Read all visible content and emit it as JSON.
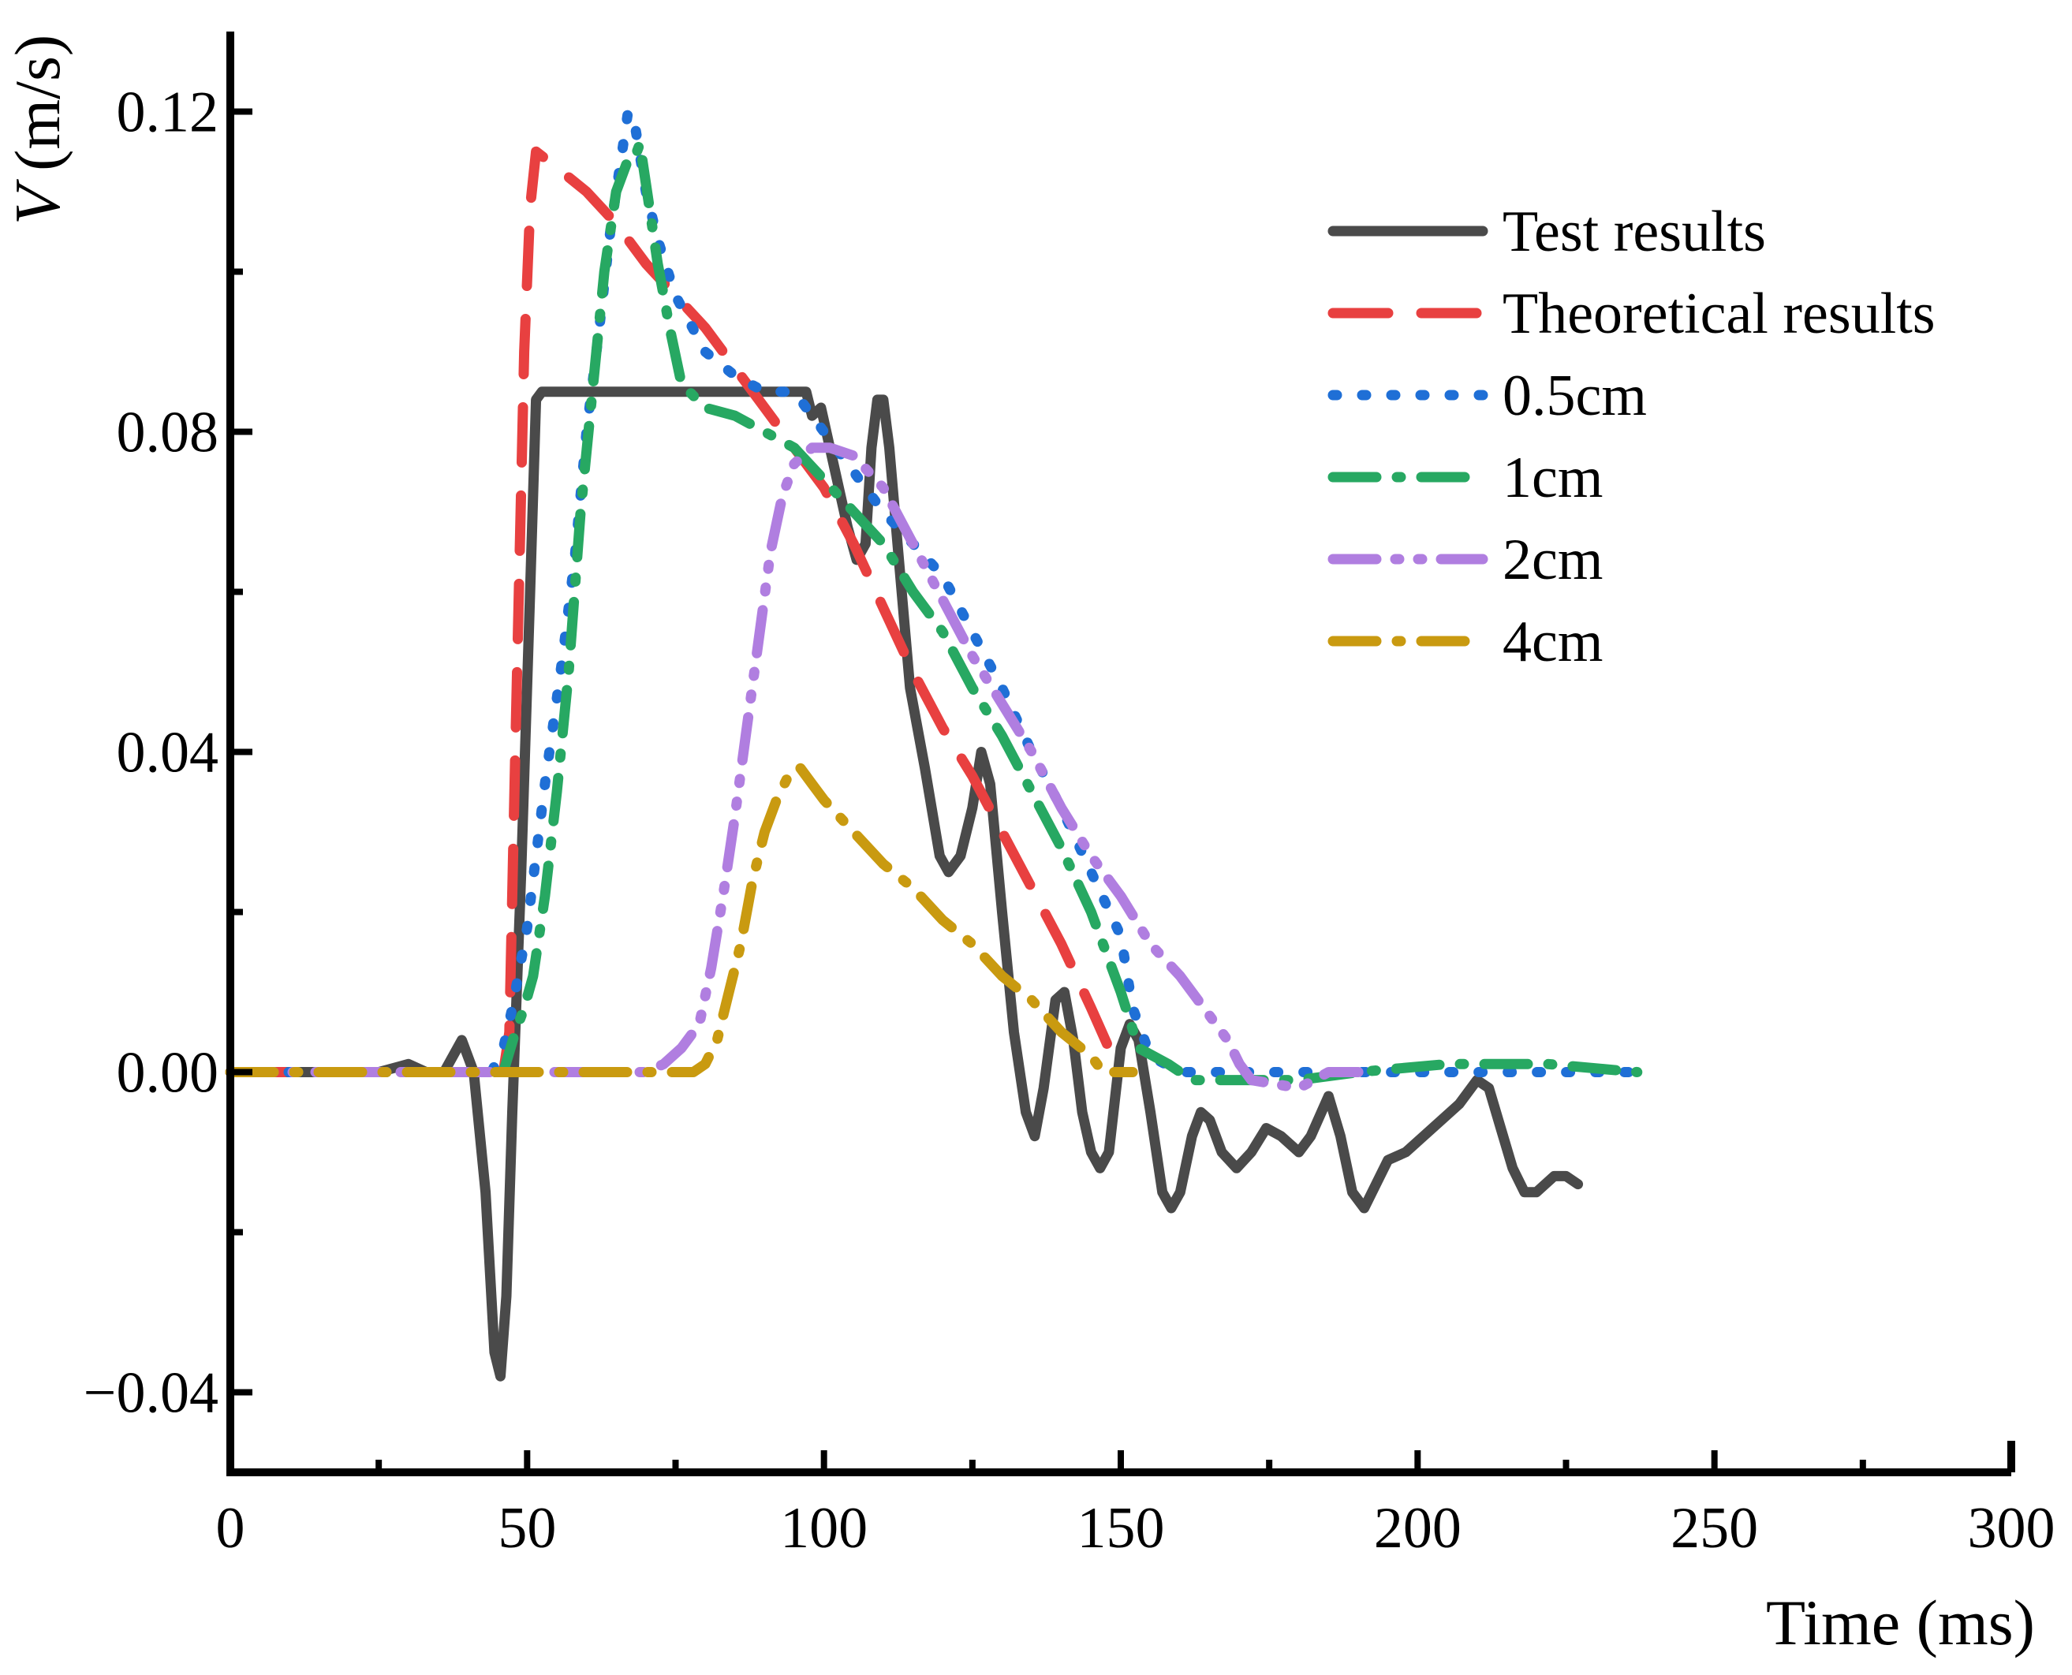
{
  "chart_data": {
    "type": "line",
    "xlabel": "Time (ms)",
    "ylabel_symbol": "V",
    "ylabel_unit": "(m/s)",
    "xlim": [
      0,
      300
    ],
    "ylim": [
      -0.05,
      0.13
    ],
    "x_ticks": [
      0,
      50,
      100,
      150,
      200,
      250,
      300
    ],
    "x_tick_labels": [
      "0",
      "50",
      "100",
      "150",
      "200",
      "250",
      "300"
    ],
    "y_ticks": [
      -0.04,
      0.0,
      0.04,
      0.08,
      0.12
    ],
    "y_tick_labels": [
      "−0.04",
      "0.00",
      "0.04",
      "0.08",
      "0.12"
    ],
    "grid": false,
    "legend_position": "top-right",
    "series": [
      {
        "name": "Test results",
        "color": "#4a4a4a",
        "style": "solid",
        "points": [
          [
            0,
            0
          ],
          [
            25,
            0
          ],
          [
            30,
            0.001
          ],
          [
            33,
            0
          ],
          [
            36,
            0
          ],
          [
            39,
            0.004
          ],
          [
            41,
            0
          ],
          [
            43,
            -0.015
          ],
          [
            44.5,
            -0.035
          ],
          [
            45.5,
            -0.038
          ],
          [
            46.5,
            -0.028
          ],
          [
            47.5,
            -0.005
          ],
          [
            49,
            0.025
          ],
          [
            50.5,
            0.06
          ],
          [
            51.5,
            0.084
          ],
          [
            52.5,
            0.085
          ],
          [
            70,
            0.085
          ],
          [
            80,
            0.085
          ],
          [
            95,
            0.085
          ],
          [
            97,
            0.085
          ],
          [
            98,
            0.082
          ],
          [
            99.5,
            0.083
          ],
          [
            101,
            0.078
          ],
          [
            104,
            0.068
          ],
          [
            105.5,
            0.064
          ],
          [
            107,
            0.066
          ],
          [
            108,
            0.078
          ],
          [
            109,
            0.084
          ],
          [
            110,
            0.084
          ],
          [
            111,
            0.078
          ],
          [
            112.5,
            0.065
          ],
          [
            114.5,
            0.048
          ],
          [
            117,
            0.038
          ],
          [
            119.5,
            0.027
          ],
          [
            121,
            0.025
          ],
          [
            123,
            0.027
          ],
          [
            125,
            0.033
          ],
          [
            126.5,
            0.04
          ],
          [
            128,
            0.036
          ],
          [
            130,
            0.02
          ],
          [
            132,
            0.005
          ],
          [
            134,
            -0.005
          ],
          [
            135.5,
            -0.008
          ],
          [
            137,
            -0.002
          ],
          [
            139,
            0.009
          ],
          [
            140.5,
            0.01
          ],
          [
            142,
            0.004
          ],
          [
            143.5,
            -0.005
          ],
          [
            145,
            -0.01
          ],
          [
            146.5,
            -0.012
          ],
          [
            148,
            -0.01
          ],
          [
            150,
            0.003
          ],
          [
            151.5,
            0.006
          ],
          [
            153,
            0.004
          ],
          [
            155,
            -0.005
          ],
          [
            157,
            -0.015
          ],
          [
            158.5,
            -0.017
          ],
          [
            160,
            -0.015
          ],
          [
            162,
            -0.008
          ],
          [
            163.5,
            -0.005
          ],
          [
            165,
            -0.006
          ],
          [
            167,
            -0.01
          ],
          [
            169.5,
            -0.012
          ],
          [
            172,
            -0.01
          ],
          [
            174.5,
            -0.007
          ],
          [
            177,
            -0.008
          ],
          [
            180,
            -0.01
          ],
          [
            182,
            -0.008
          ],
          [
            185,
            -0.003
          ],
          [
            187,
            -0.008
          ],
          [
            189,
            -0.015
          ],
          [
            191,
            -0.017
          ],
          [
            193,
            -0.014
          ],
          [
            195,
            -0.011
          ],
          [
            198,
            -0.01
          ],
          [
            201,
            -0.008
          ],
          [
            204,
            -0.006
          ],
          [
            207,
            -0.004
          ],
          [
            210,
            -0.001
          ],
          [
            212,
            -0.002
          ],
          [
            214,
            -0.007
          ],
          [
            216,
            -0.012
          ],
          [
            218,
            -0.015
          ],
          [
            220,
            -0.015
          ],
          [
            223,
            -0.013
          ],
          [
            225,
            -0.013
          ],
          [
            227,
            -0.014
          ]
        ]
      },
      {
        "name": "Theoretical results",
        "color": "#e84040",
        "style": "dashed",
        "points": [
          [
            0,
            0
          ],
          [
            46,
            0
          ],
          [
            47,
            0.005
          ],
          [
            48,
            0.04
          ],
          [
            49.5,
            0.09
          ],
          [
            50.5,
            0.108
          ],
          [
            51.5,
            0.115
          ],
          [
            55,
            0.113
          ],
          [
            60,
            0.11
          ],
          [
            65,
            0.106
          ],
          [
            70,
            0.101
          ],
          [
            75,
            0.097
          ],
          [
            80,
            0.093
          ],
          [
            85,
            0.088
          ],
          [
            90,
            0.083
          ],
          [
            95,
            0.078
          ],
          [
            100,
            0.073
          ],
          [
            105,
            0.066
          ],
          [
            110,
            0.058
          ],
          [
            115,
            0.05
          ],
          [
            120,
            0.043
          ],
          [
            125,
            0.037
          ],
          [
            130,
            0.03
          ],
          [
            135,
            0.023
          ],
          [
            140,
            0.016
          ],
          [
            145,
            0.008
          ],
          [
            148,
            0.003
          ],
          [
            149,
            0
          ]
        ]
      },
      {
        "name": "0.5cm",
        "color": "#1f6fd6",
        "style": "dotted",
        "points": [
          [
            0,
            0
          ],
          [
            44,
            0
          ],
          [
            46,
            0.003
          ],
          [
            47.5,
            0.008
          ],
          [
            50,
            0.018
          ],
          [
            53,
            0.036
          ],
          [
            56,
            0.052
          ],
          [
            58,
            0.064
          ],
          [
            60,
            0.08
          ],
          [
            62,
            0.092
          ],
          [
            64,
            0.105
          ],
          [
            66,
            0.115
          ],
          [
            67,
            0.12
          ],
          [
            68,
            0.119
          ],
          [
            70,
            0.11
          ],
          [
            72,
            0.104
          ],
          [
            75,
            0.097
          ],
          [
            80,
            0.09
          ],
          [
            85,
            0.087
          ],
          [
            90,
            0.085
          ],
          [
            95,
            0.085
          ],
          [
            100,
            0.08
          ],
          [
            105,
            0.075
          ],
          [
            110,
            0.07
          ],
          [
            115,
            0.066
          ],
          [
            120,
            0.062
          ],
          [
            125,
            0.055
          ],
          [
            130,
            0.048
          ],
          [
            135,
            0.04
          ],
          [
            140,
            0.033
          ],
          [
            145,
            0.025
          ],
          [
            150,
            0.017
          ],
          [
            152,
            0.008
          ],
          [
            155,
            0.002
          ],
          [
            160,
            0
          ],
          [
            237,
            0
          ]
        ]
      },
      {
        "name": "1cm",
        "color": "#27a862",
        "style": "dashdot",
        "points": [
          [
            0,
            0
          ],
          [
            45,
            0
          ],
          [
            46,
            0
          ],
          [
            48,
            0.005
          ],
          [
            49.5,
            0.008
          ],
          [
            51,
            0.012
          ],
          [
            53,
            0.022
          ],
          [
            55,
            0.035
          ],
          [
            57,
            0.05
          ],
          [
            59,
            0.07
          ],
          [
            61,
            0.085
          ],
          [
            63,
            0.1
          ],
          [
            65,
            0.11
          ],
          [
            67,
            0.114
          ],
          [
            68,
            0.114
          ],
          [
            69,
            0.116
          ],
          [
            70,
            0.111
          ],
          [
            72,
            0.101
          ],
          [
            74,
            0.093
          ],
          [
            76,
            0.086
          ],
          [
            80,
            0.083
          ],
          [
            85,
            0.082
          ],
          [
            90,
            0.08
          ],
          [
            95,
            0.078
          ],
          [
            100,
            0.074
          ],
          [
            105,
            0.07
          ],
          [
            110,
            0.066
          ],
          [
            115,
            0.06
          ],
          [
            120,
            0.055
          ],
          [
            125,
            0.048
          ],
          [
            130,
            0.042
          ],
          [
            135,
            0.035
          ],
          [
            140,
            0.028
          ],
          [
            145,
            0.02
          ],
          [
            150,
            0.01
          ],
          [
            153,
            0.003
          ],
          [
            158,
            0.001
          ],
          [
            162,
            -0.001
          ],
          [
            166,
            -0.001
          ],
          [
            172,
            -0.001
          ],
          [
            180,
            -0.001
          ],
          [
            190,
            0
          ],
          [
            205,
            0.001
          ],
          [
            213,
            0.001
          ],
          [
            222,
            0.001
          ],
          [
            237,
            0
          ]
        ]
      },
      {
        "name": "2cm",
        "color": "#b07ee0",
        "style": "dashdotdot",
        "points": [
          [
            0,
            0
          ],
          [
            70,
            0
          ],
          [
            73,
            0.001
          ],
          [
            76,
            0.003
          ],
          [
            79,
            0.006
          ],
          [
            81,
            0.013
          ],
          [
            83,
            0.022
          ],
          [
            85,
            0.032
          ],
          [
            87,
            0.043
          ],
          [
            89,
            0.054
          ],
          [
            91,
            0.065
          ],
          [
            93,
            0.072
          ],
          [
            95,
            0.076
          ],
          [
            98,
            0.078
          ],
          [
            101,
            0.078
          ],
          [
            105,
            0.077
          ],
          [
            110,
            0.073
          ],
          [
            115,
            0.066
          ],
          [
            120,
            0.059
          ],
          [
            125,
            0.052
          ],
          [
            130,
            0.046
          ],
          [
            135,
            0.04
          ],
          [
            140,
            0.033
          ],
          [
            145,
            0.027
          ],
          [
            150,
            0.022
          ],
          [
            155,
            0.016
          ],
          [
            160,
            0.012
          ],
          [
            165,
            0.007
          ],
          [
            168,
            0.004
          ],
          [
            170,
            0.001
          ],
          [
            172,
            -0.001
          ],
          [
            180,
            -0.002
          ],
          [
            185,
            0
          ],
          [
            190,
            0
          ]
        ]
      },
      {
        "name": "4cm",
        "color": "#c99a10",
        "style": "dashdot",
        "points": [
          [
            0,
            0
          ],
          [
            75,
            0
          ],
          [
            78,
            0
          ],
          [
            80,
            0.001
          ],
          [
            82,
            0.004
          ],
          [
            84,
            0.01
          ],
          [
            86,
            0.016
          ],
          [
            88,
            0.024
          ],
          [
            90,
            0.03
          ],
          [
            92,
            0.034
          ],
          [
            94,
            0.037
          ],
          [
            95,
            0.038
          ],
          [
            96,
            0.038
          ],
          [
            98,
            0.036
          ],
          [
            100,
            0.034
          ],
          [
            105,
            0.03
          ],
          [
            110,
            0.026
          ],
          [
            115,
            0.023
          ],
          [
            120,
            0.019
          ],
          [
            125,
            0.016
          ],
          [
            130,
            0.012
          ],
          [
            135,
            0.009
          ],
          [
            140,
            0.005
          ],
          [
            145,
            0.002
          ],
          [
            147,
            0
          ],
          [
            152,
            0
          ]
        ]
      }
    ]
  }
}
